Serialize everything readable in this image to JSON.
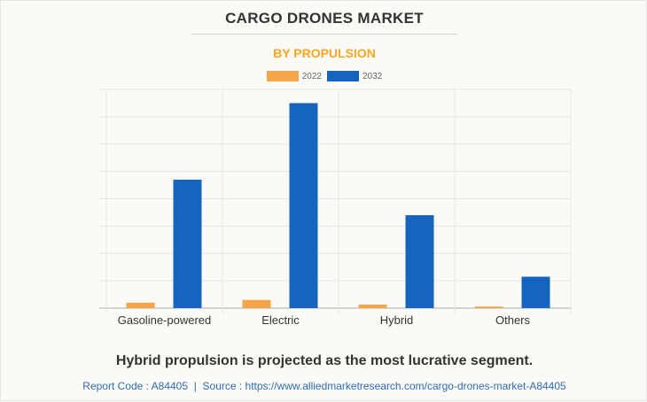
{
  "title": "CARGO DRONES MARKET",
  "subtitle": "BY PROPULSION",
  "caption": "Hybrid propulsion is projected as the most lucrative segment.",
  "source": {
    "report_code_label": "Report Code : A84405",
    "separator": "|",
    "source_label": "Source : https://www.alliedmarketresearch.com/cargo-drones-market-A84405"
  },
  "colors": {
    "series_2022": "#f5a54a",
    "series_2032": "#1565c0",
    "subtitle": "#f5a623"
  },
  "chart_data": {
    "type": "bar",
    "title": "CARGO DRONES MARKET",
    "subtitle": "BY PROPULSION",
    "xlabel": "",
    "ylabel": "",
    "categories": [
      "Gasoline-powered",
      "Electric",
      "Hybrid",
      "Others"
    ],
    "series": [
      {
        "name": "2022",
        "color": "#f5a54a",
        "values": [
          0.2,
          0.3,
          0.13,
          0.06
        ]
      },
      {
        "name": "2032",
        "color": "#1565c0",
        "values": [
          4.7,
          7.5,
          3.4,
          1.15
        ]
      }
    ],
    "ylim": [
      0,
      8
    ],
    "y_units": "relative (gridline intervals; axis values not shown)",
    "grid": true,
    "legend": "top-center"
  }
}
